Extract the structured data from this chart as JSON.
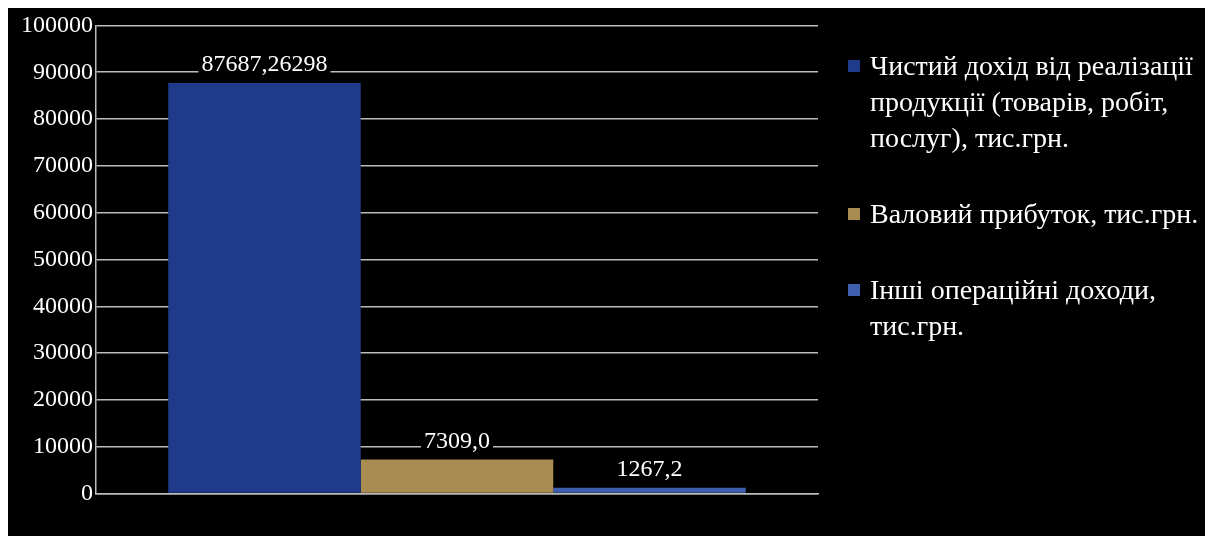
{
  "chart_data": {
    "type": "bar",
    "categories": [
      null
    ],
    "series": [
      {
        "name": "Чистий дохід від реалізації продукції (товарів, робіт, послуг), тис.грн.",
        "color": "#1f3a8a",
        "values": [
          87687.26298
        ],
        "value_labels": [
          "87687,26298"
        ]
      },
      {
        "name": "Валовий прибуток, тис.грн.",
        "color": "#a88c52",
        "values": [
          7309.0
        ],
        "value_labels": [
          "7309,0"
        ]
      },
      {
        "name": "Інші операційні доходи, тис.грн.",
        "color": "#3d5fae",
        "values": [
          1267.2
        ],
        "value_labels": [
          "1267,2"
        ]
      }
    ],
    "ylim": [
      0,
      100000
    ],
    "yticks": [
      0,
      10000,
      20000,
      30000,
      40000,
      50000,
      60000,
      70000,
      80000,
      90000,
      100000
    ],
    "grid": "y",
    "legend": "right"
  }
}
